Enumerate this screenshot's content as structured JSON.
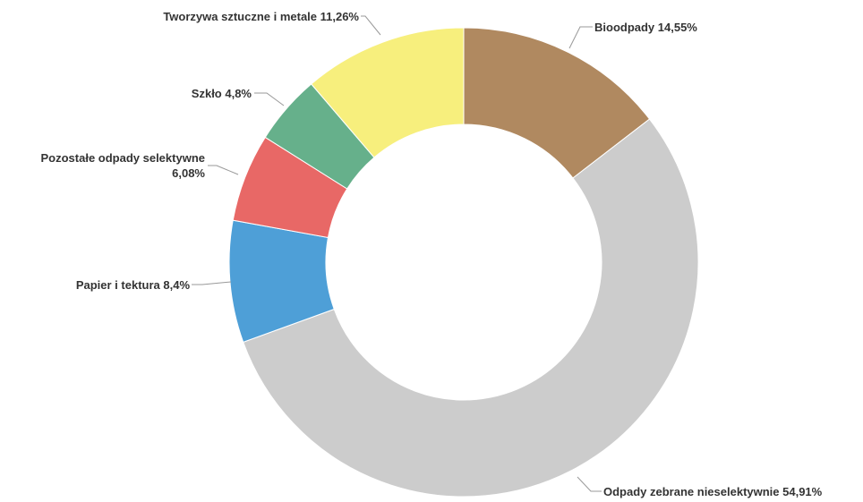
{
  "chart_data": {
    "type": "pie",
    "variant": "donut",
    "title": "",
    "legend": "none",
    "data_labels": true,
    "slices": [
      {
        "name": "Bioodpady",
        "value": 14.55,
        "label": "Bioodpady 14,55%",
        "color": "#b08960"
      },
      {
        "name": "Odpady zebrane nieselektywnie",
        "value": 54.91,
        "label": "Odpady zebrane nieselektywnie 54,91%",
        "color": "#cccccc"
      },
      {
        "name": "Papier i tektura",
        "value": 8.4,
        "label": "Papier i tektura 8,4%",
        "color": "#4e9fd7"
      },
      {
        "name": "Pozostałe odpady selektywne",
        "value": 6.08,
        "label_lines": [
          "Pozostałe odpady selektywne",
          "6,08%"
        ],
        "color": "#e86866"
      },
      {
        "name": "Szkło",
        "value": 4.8,
        "label": "Szkło 4,8%",
        "color": "#66b08b"
      },
      {
        "name": "Tworzywa sztuczne i metale",
        "value": 11.26,
        "label": "Tworzywa sztuczne i metale 11,26%",
        "color": "#f7ef7d"
      }
    ]
  }
}
